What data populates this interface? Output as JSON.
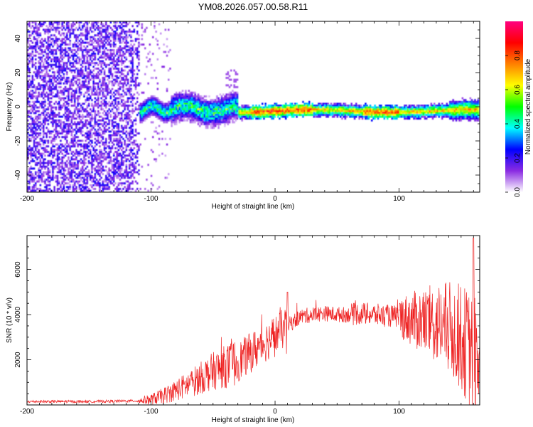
{
  "title": "YM08.2026.057.00.58.R11",
  "chart_data": [
    {
      "type": "heatmap",
      "name": "spectrogram",
      "xlabel": "Height of straight line (km)",
      "ylabel": "Frequency (Hz)",
      "xlim": [
        -200,
        165
      ],
      "ylim": [
        -50,
        50
      ],
      "x_ticks": [
        -200,
        -100,
        0,
        100
      ],
      "y_ticks": [
        -40,
        -20,
        0,
        20,
        40
      ],
      "colorbar": {
        "label": "Normalized spectral amplitude",
        "range": [
          0,
          1
        ],
        "ticks": [
          "0.0",
          "0.2",
          "0.4",
          "0.6",
          "0.8"
        ],
        "tick_values": [
          0,
          0.2,
          0.4,
          0.6,
          0.8
        ],
        "colors": [
          "#ffffff",
          "#8a2be2",
          "#0000ff",
          "#00ffff",
          "#00ff00",
          "#ffff00",
          "#ff8000",
          "#ff0000",
          "#ff0080"
        ]
      },
      "regions": [
        {
          "name": "noise",
          "x": [
            -200,
            -110
          ],
          "freq": [
            -50,
            50
          ],
          "level": 0.15
        },
        {
          "name": "onset",
          "x": [
            -110,
            -30
          ],
          "freq_center": 0,
          "spread": 8,
          "level": 0.4
        },
        {
          "name": "signal",
          "x": [
            -30,
            165
          ],
          "freq_center": -2,
          "spread": 3,
          "level": 0.85
        }
      ]
    },
    {
      "type": "line",
      "name": "snr",
      "xlabel": "Height of straight line (km)",
      "ylabel": "SNR (10 * v/v)",
      "xlim": [
        -200,
        165
      ],
      "ylim": [
        0,
        7500
      ],
      "x_ticks": [
        -200,
        -100,
        0,
        100
      ],
      "y_ticks": [
        2000,
        4000,
        6000
      ],
      "series": [
        {
          "name": "SNR",
          "color": "#ee2222",
          "x": [
            -200,
            -150,
            -110,
            -100,
            -90,
            -80,
            -70,
            -60,
            -50,
            -40,
            -30,
            -20,
            -10,
            0,
            10,
            20,
            30,
            40,
            50,
            60,
            70,
            80,
            90,
            100,
            110,
            120,
            130,
            140,
            150,
            160,
            165
          ],
          "values": [
            150,
            150,
            180,
            250,
            400,
            650,
            900,
            1200,
            1500,
            1700,
            1900,
            2300,
            2700,
            3100,
            3500,
            3900,
            4000,
            4050,
            4000,
            4000,
            4050,
            4000,
            3950,
            3900,
            3800,
            3700,
            3600,
            3400,
            3000,
            2200,
            1800
          ]
        }
      ]
    }
  ]
}
